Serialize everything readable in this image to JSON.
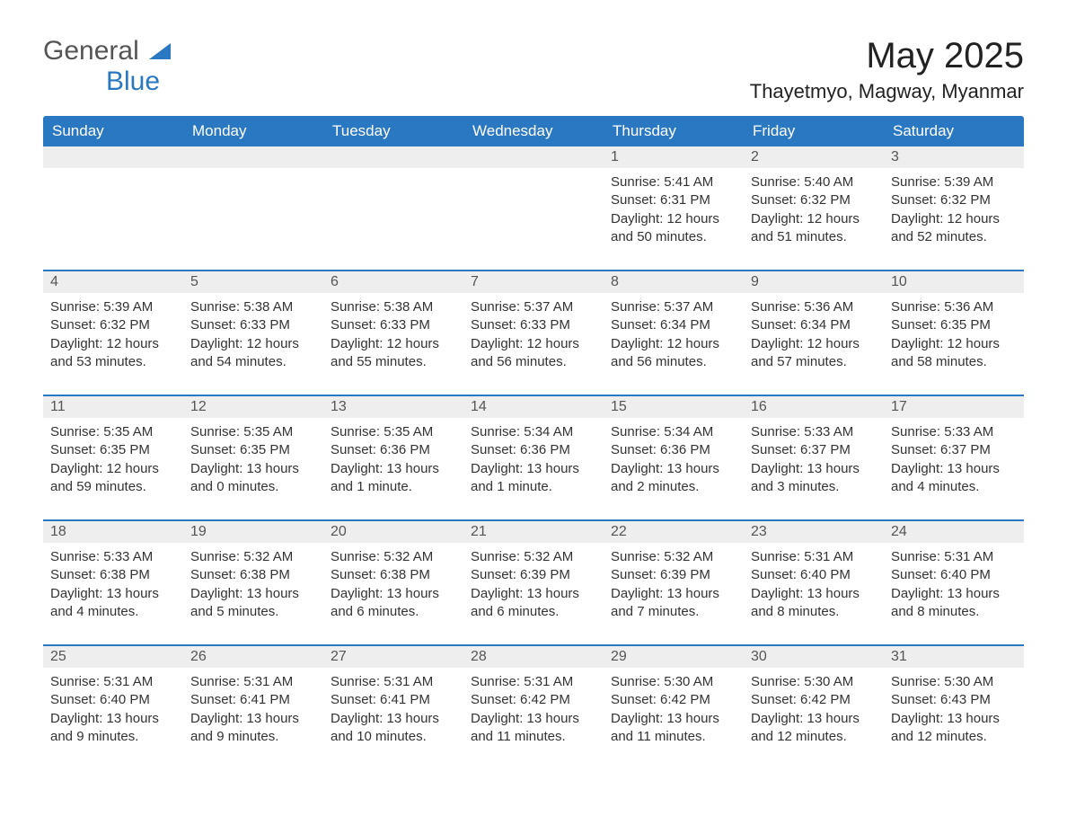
{
  "logo": {
    "word1": "General",
    "word2": "Blue",
    "tri_color": "#2b78c2"
  },
  "title": "May 2025",
  "location": "Thayetmyo, Magway, Myanmar",
  "colors": {
    "header_bg": "#2b78c2",
    "header_text": "#ffffff",
    "daynum_bg": "#eeeeee",
    "daynum_text": "#555555",
    "body_text": "#333333",
    "rule": "#2b78c2"
  },
  "weekdays": [
    "Sunday",
    "Monday",
    "Tuesday",
    "Wednesday",
    "Thursday",
    "Friday",
    "Saturday"
  ],
  "weeks": [
    [
      {
        "num": "",
        "lines": []
      },
      {
        "num": "",
        "lines": []
      },
      {
        "num": "",
        "lines": []
      },
      {
        "num": "",
        "lines": []
      },
      {
        "num": "1",
        "lines": [
          "Sunrise: 5:41 AM",
          "Sunset: 6:31 PM",
          "Daylight: 12 hours and 50 minutes."
        ]
      },
      {
        "num": "2",
        "lines": [
          "Sunrise: 5:40 AM",
          "Sunset: 6:32 PM",
          "Daylight: 12 hours and 51 minutes."
        ]
      },
      {
        "num": "3",
        "lines": [
          "Sunrise: 5:39 AM",
          "Sunset: 6:32 PM",
          "Daylight: 12 hours and 52 minutes."
        ]
      }
    ],
    [
      {
        "num": "4",
        "lines": [
          "Sunrise: 5:39 AM",
          "Sunset: 6:32 PM",
          "Daylight: 12 hours and 53 minutes."
        ]
      },
      {
        "num": "5",
        "lines": [
          "Sunrise: 5:38 AM",
          "Sunset: 6:33 PM",
          "Daylight: 12 hours and 54 minutes."
        ]
      },
      {
        "num": "6",
        "lines": [
          "Sunrise: 5:38 AM",
          "Sunset: 6:33 PM",
          "Daylight: 12 hours and 55 minutes."
        ]
      },
      {
        "num": "7",
        "lines": [
          "Sunrise: 5:37 AM",
          "Sunset: 6:33 PM",
          "Daylight: 12 hours and 56 minutes."
        ]
      },
      {
        "num": "8",
        "lines": [
          "Sunrise: 5:37 AM",
          "Sunset: 6:34 PM",
          "Daylight: 12 hours and 56 minutes."
        ]
      },
      {
        "num": "9",
        "lines": [
          "Sunrise: 5:36 AM",
          "Sunset: 6:34 PM",
          "Daylight: 12 hours and 57 minutes."
        ]
      },
      {
        "num": "10",
        "lines": [
          "Sunrise: 5:36 AM",
          "Sunset: 6:35 PM",
          "Daylight: 12 hours and 58 minutes."
        ]
      }
    ],
    [
      {
        "num": "11",
        "lines": [
          "Sunrise: 5:35 AM",
          "Sunset: 6:35 PM",
          "Daylight: 12 hours and 59 minutes."
        ]
      },
      {
        "num": "12",
        "lines": [
          "Sunrise: 5:35 AM",
          "Sunset: 6:35 PM",
          "Daylight: 13 hours and 0 minutes."
        ]
      },
      {
        "num": "13",
        "lines": [
          "Sunrise: 5:35 AM",
          "Sunset: 6:36 PM",
          "Daylight: 13 hours and 1 minute."
        ]
      },
      {
        "num": "14",
        "lines": [
          "Sunrise: 5:34 AM",
          "Sunset: 6:36 PM",
          "Daylight: 13 hours and 1 minute."
        ]
      },
      {
        "num": "15",
        "lines": [
          "Sunrise: 5:34 AM",
          "Sunset: 6:36 PM",
          "Daylight: 13 hours and 2 minutes."
        ]
      },
      {
        "num": "16",
        "lines": [
          "Sunrise: 5:33 AM",
          "Sunset: 6:37 PM",
          "Daylight: 13 hours and 3 minutes."
        ]
      },
      {
        "num": "17",
        "lines": [
          "Sunrise: 5:33 AM",
          "Sunset: 6:37 PM",
          "Daylight: 13 hours and 4 minutes."
        ]
      }
    ],
    [
      {
        "num": "18",
        "lines": [
          "Sunrise: 5:33 AM",
          "Sunset: 6:38 PM",
          "Daylight: 13 hours and 4 minutes."
        ]
      },
      {
        "num": "19",
        "lines": [
          "Sunrise: 5:32 AM",
          "Sunset: 6:38 PM",
          "Daylight: 13 hours and 5 minutes."
        ]
      },
      {
        "num": "20",
        "lines": [
          "Sunrise: 5:32 AM",
          "Sunset: 6:38 PM",
          "Daylight: 13 hours and 6 minutes."
        ]
      },
      {
        "num": "21",
        "lines": [
          "Sunrise: 5:32 AM",
          "Sunset: 6:39 PM",
          "Daylight: 13 hours and 6 minutes."
        ]
      },
      {
        "num": "22",
        "lines": [
          "Sunrise: 5:32 AM",
          "Sunset: 6:39 PM",
          "Daylight: 13 hours and 7 minutes."
        ]
      },
      {
        "num": "23",
        "lines": [
          "Sunrise: 5:31 AM",
          "Sunset: 6:40 PM",
          "Daylight: 13 hours and 8 minutes."
        ]
      },
      {
        "num": "24",
        "lines": [
          "Sunrise: 5:31 AM",
          "Sunset: 6:40 PM",
          "Daylight: 13 hours and 8 minutes."
        ]
      }
    ],
    [
      {
        "num": "25",
        "lines": [
          "Sunrise: 5:31 AM",
          "Sunset: 6:40 PM",
          "Daylight: 13 hours and 9 minutes."
        ]
      },
      {
        "num": "26",
        "lines": [
          "Sunrise: 5:31 AM",
          "Sunset: 6:41 PM",
          "Daylight: 13 hours and 9 minutes."
        ]
      },
      {
        "num": "27",
        "lines": [
          "Sunrise: 5:31 AM",
          "Sunset: 6:41 PM",
          "Daylight: 13 hours and 10 minutes."
        ]
      },
      {
        "num": "28",
        "lines": [
          "Sunrise: 5:31 AM",
          "Sunset: 6:42 PM",
          "Daylight: 13 hours and 11 minutes."
        ]
      },
      {
        "num": "29",
        "lines": [
          "Sunrise: 5:30 AM",
          "Sunset: 6:42 PM",
          "Daylight: 13 hours and 11 minutes."
        ]
      },
      {
        "num": "30",
        "lines": [
          "Sunrise: 5:30 AM",
          "Sunset: 6:42 PM",
          "Daylight: 13 hours and 12 minutes."
        ]
      },
      {
        "num": "31",
        "lines": [
          "Sunrise: 5:30 AM",
          "Sunset: 6:43 PM",
          "Daylight: 13 hours and 12 minutes."
        ]
      }
    ]
  ]
}
